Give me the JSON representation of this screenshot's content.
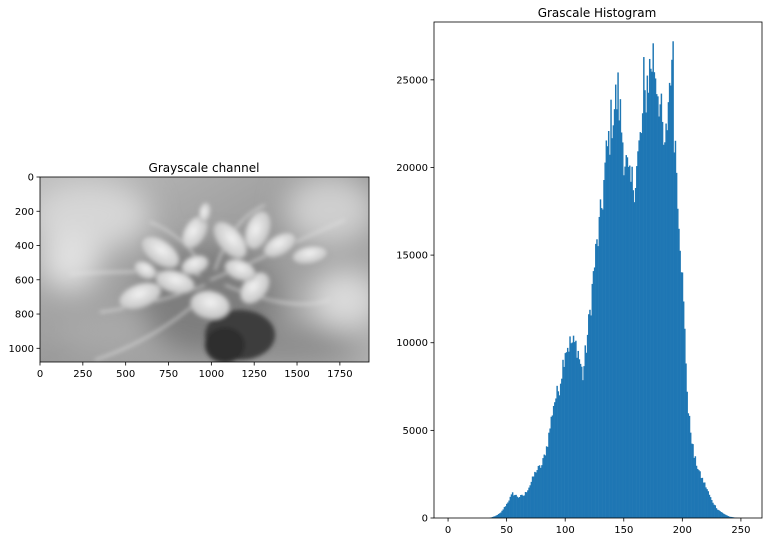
{
  "chart_data": [
    {
      "type": "image",
      "title": "Grayscale channel",
      "xlim": [
        0,
        1920
      ],
      "ylim": [
        1080,
        0
      ],
      "x_ticks": [
        0,
        250,
        500,
        750,
        1000,
        1250,
        1500,
        1750
      ],
      "y_ticks": [
        0,
        200,
        400,
        600,
        800,
        1000
      ],
      "image_subject": "grayscale photo of a spider flower",
      "colormap": "gray"
    },
    {
      "type": "bar",
      "title": "Grascale Histogram",
      "color": "#1f77b4",
      "bins": 256,
      "xlim": [
        -12,
        268
      ],
      "ylim": [
        0,
        28300
      ],
      "x_ticks": [
        0,
        50,
        100,
        150,
        200,
        250
      ],
      "y_ticks": [
        0,
        5000,
        10000,
        15000,
        20000,
        25000
      ],
      "x": [
        0,
        5,
        10,
        15,
        20,
        25,
        30,
        35,
        40,
        45,
        50,
        55,
        60,
        65,
        70,
        75,
        80,
        85,
        90,
        95,
        100,
        105,
        110,
        115,
        120,
        125,
        130,
        135,
        140,
        145,
        150,
        155,
        160,
        165,
        170,
        175,
        180,
        185,
        190,
        195,
        200,
        205,
        210,
        215,
        220,
        225,
        230,
        235,
        240,
        245,
        250,
        255
      ],
      "values": [
        0,
        0,
        0,
        0,
        0,
        0,
        0,
        0,
        100,
        300,
        800,
        1400,
        1200,
        1300,
        1900,
        2700,
        3000,
        4300,
        6500,
        7500,
        9700,
        10000,
        9800,
        8100,
        11000,
        14500,
        17000,
        20500,
        23000,
        24200,
        21000,
        18800,
        19500,
        22000,
        25000,
        26400,
        24200,
        20500,
        26000,
        20000,
        13500,
        6000,
        3500,
        2500,
        1800,
        1000,
        500,
        250,
        80,
        20,
        0,
        0
      ]
    }
  ]
}
